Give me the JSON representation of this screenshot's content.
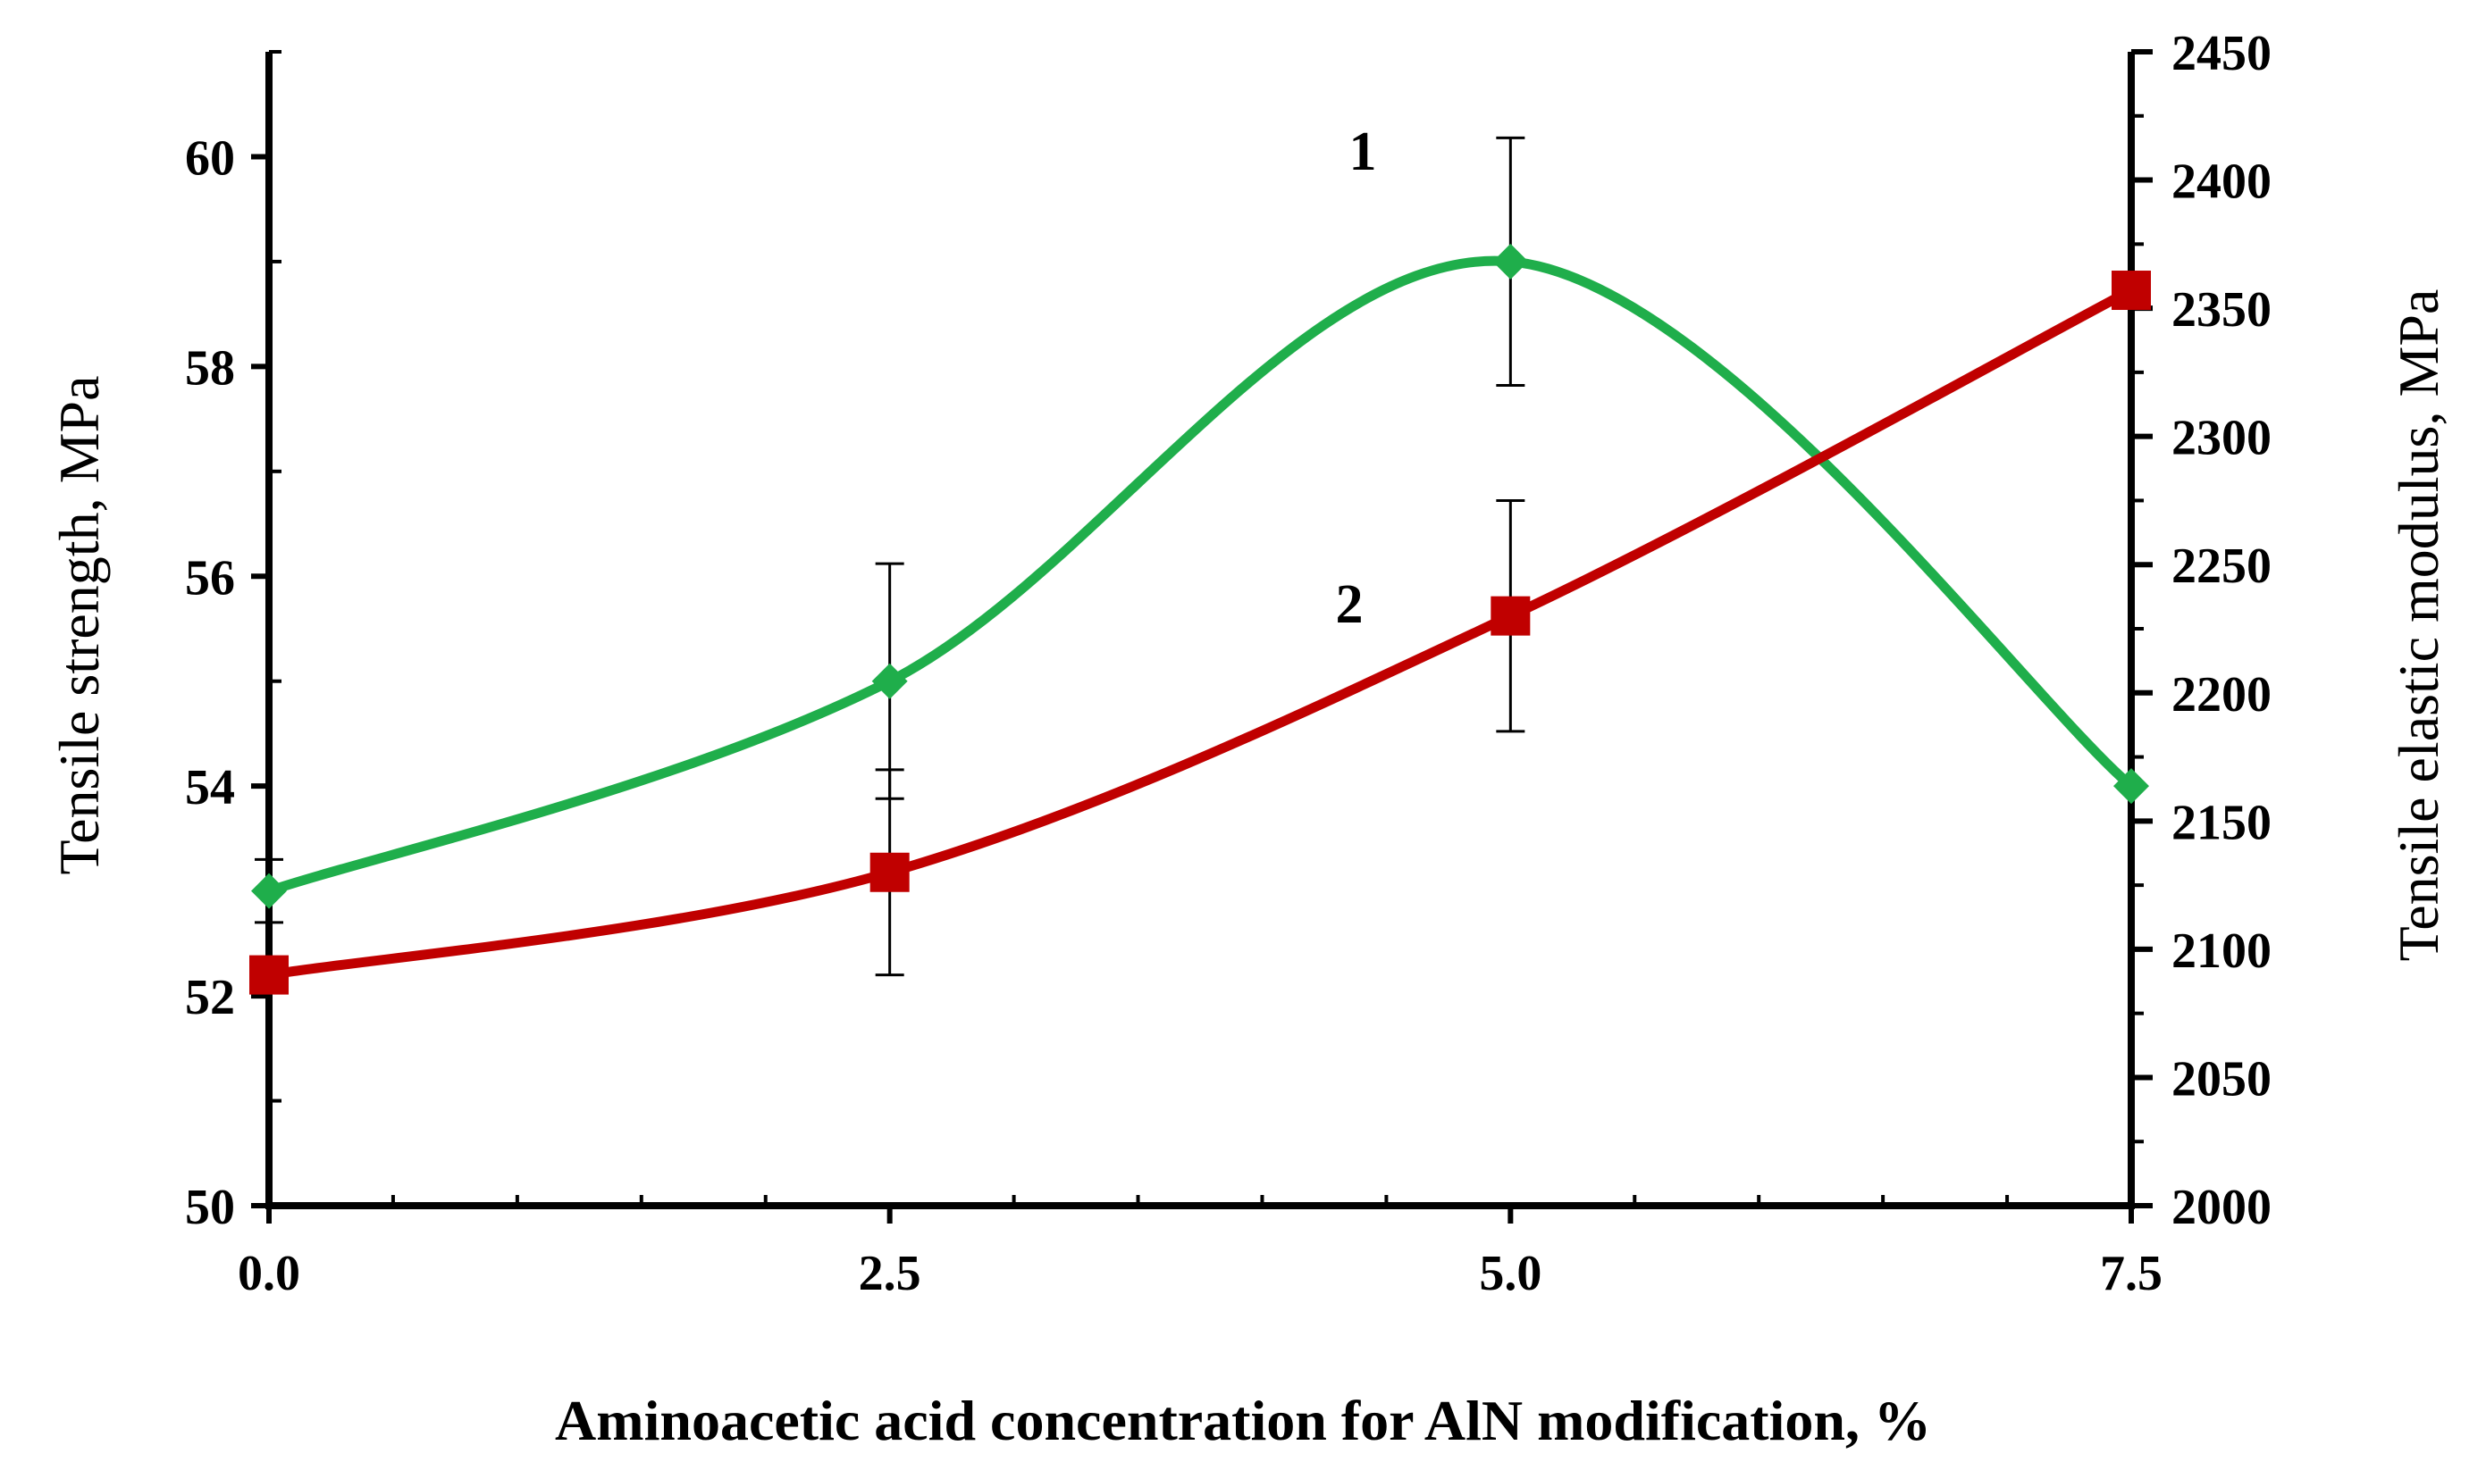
{
  "chart_data": {
    "type": "line",
    "xlabel": "Aminoacetic acid concentration for AlN modification, %",
    "ylabel": "Tensile strength, MPa",
    "y2label": "Tensile elastic modulus, MPa",
    "xlim": [
      0,
      7.5
    ],
    "ylim": [
      50,
      61
    ],
    "y2lim": [
      2000,
      2450
    ],
    "x_ticks": [
      "0.0",
      "2.5",
      "5.0",
      "7.5"
    ],
    "x_tick_values": [
      0,
      2.5,
      5,
      7.5
    ],
    "x_minor_step": 0.5,
    "y_ticks": [
      "50",
      "52",
      "54",
      "56",
      "58",
      "60"
    ],
    "y_tick_values": [
      50,
      52,
      54,
      56,
      58,
      60
    ],
    "y_minor_step": 1,
    "y2_ticks": [
      "2000",
      "2050",
      "2100",
      "2150",
      "2200",
      "2250",
      "2300",
      "2350",
      "2400",
      "2450"
    ],
    "y2_tick_values": [
      2000,
      2050,
      2100,
      2150,
      2200,
      2250,
      2300,
      2350,
      2400,
      2450
    ],
    "y2_minor_step": 25,
    "series": [
      {
        "name": "1",
        "axis": "left",
        "color": "#1fae4b",
        "marker": "diamond",
        "x": [
          0,
          2.5,
          5,
          7.5
        ],
        "values": [
          53.0,
          55.0,
          59.0,
          54.0
        ],
        "error": [
          0.3,
          1.12,
          1.18,
          0
        ]
      },
      {
        "name": "2",
        "axis": "right",
        "color": "#c00000",
        "marker": "square",
        "x": [
          0,
          2.5,
          5,
          7.5
        ],
        "values": [
          2090,
          2130,
          2230,
          2357
        ],
        "error": [
          0,
          40,
          45,
          0
        ]
      }
    ]
  }
}
